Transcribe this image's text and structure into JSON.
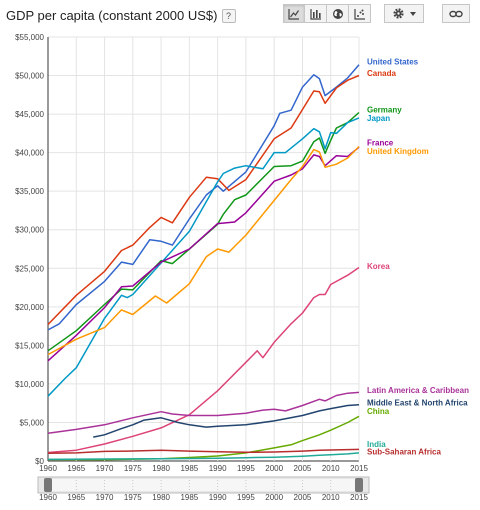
{
  "header": {
    "title": "GDP per capita (constant 2000 US$)",
    "help": "?"
  },
  "toolbar": {
    "buttons": [
      {
        "icon": "line-chart-icon",
        "active": true
      },
      {
        "icon": "bar-chart-icon",
        "active": false
      },
      {
        "icon": "map-globe-icon",
        "active": false
      },
      {
        "icon": "scatter-chart-icon",
        "active": false
      }
    ],
    "settings_icon": "gear-icon",
    "dropdown_icon": "chevron-down-icon",
    "link_icon": "link-icon"
  },
  "chart_data": {
    "type": "line",
    "title": "GDP per capita (constant 2000 US$)",
    "ylim": [
      0,
      55000
    ],
    "xlim": [
      1960,
      2015
    ],
    "yticks": [
      "$0",
      "$5,000",
      "$10,000",
      "$15,000",
      "$20,000",
      "$25,000",
      "$30,000",
      "$35,000",
      "$40,000",
      "$45,000",
      "$50,000",
      "$55,000"
    ],
    "xticks": [
      "1960",
      "1965",
      "1970",
      "1975",
      "1980",
      "1985",
      "1990",
      "1995",
      "2000",
      "2005",
      "2010",
      "2015"
    ],
    "range_slider_ticks": [
      "1960",
      "1965",
      "1970",
      "1975",
      "1980",
      "1985",
      "1990",
      "1995",
      "2000",
      "2005",
      "2010",
      "2015"
    ],
    "grid": true,
    "legend": "right",
    "series": [
      {
        "name": "United States",
        "color": "#3366cc",
        "points": [
          [
            1960,
            17000
          ],
          [
            1962,
            17800
          ],
          [
            1965,
            20300
          ],
          [
            1970,
            23300
          ],
          [
            1973,
            25800
          ],
          [
            1975,
            25500
          ],
          [
            1978,
            28700
          ],
          [
            1980,
            28500
          ],
          [
            1982,
            28000
          ],
          [
            1985,
            31400
          ],
          [
            1988,
            34500
          ],
          [
            1990,
            35700
          ],
          [
            1991,
            35000
          ],
          [
            1995,
            37500
          ],
          [
            2000,
            43500
          ],
          [
            2001,
            45100
          ],
          [
            2003,
            45500
          ],
          [
            2005,
            48500
          ],
          [
            2007,
            50100
          ],
          [
            2008,
            49600
          ],
          [
            2009,
            47400
          ],
          [
            2011,
            48500
          ],
          [
            2013,
            49700
          ],
          [
            2015,
            51400
          ]
        ]
      },
      {
        "name": "Canada",
        "color": "#dc3912",
        "points": [
          [
            1960,
            17700
          ],
          [
            1965,
            21500
          ],
          [
            1970,
            24600
          ],
          [
            1973,
            27300
          ],
          [
            1975,
            28000
          ],
          [
            1978,
            30300
          ],
          [
            1980,
            31600
          ],
          [
            1982,
            30900
          ],
          [
            1985,
            34200
          ],
          [
            1988,
            36800
          ],
          [
            1990,
            36600
          ],
          [
            1992,
            35100
          ],
          [
            1995,
            36500
          ],
          [
            2000,
            41800
          ],
          [
            2003,
            43200
          ],
          [
            2005,
            45600
          ],
          [
            2007,
            48000
          ],
          [
            2008,
            47900
          ],
          [
            2009,
            46400
          ],
          [
            2011,
            48400
          ],
          [
            2013,
            49400
          ],
          [
            2015,
            50000
          ]
        ]
      },
      {
        "name": "Germany",
        "color": "#109618",
        "points": [
          [
            1960,
            14300
          ],
          [
            1965,
            16900
          ],
          [
            1970,
            20300
          ],
          [
            1973,
            22300
          ],
          [
            1975,
            22200
          ],
          [
            1980,
            26000
          ],
          [
            1982,
            25600
          ],
          [
            1985,
            27500
          ],
          [
            1990,
            30700
          ],
          [
            1991,
            32000
          ],
          [
            1993,
            33900
          ],
          [
            1995,
            34500
          ],
          [
            2000,
            38200
          ],
          [
            2003,
            38300
          ],
          [
            2005,
            38900
          ],
          [
            2007,
            41400
          ],
          [
            2008,
            41900
          ],
          [
            2009,
            39900
          ],
          [
            2010,
            41600
          ],
          [
            2011,
            43200
          ],
          [
            2013,
            43900
          ],
          [
            2015,
            45200
          ]
        ]
      },
      {
        "name": "Japan",
        "color": "#0099c6",
        "points": [
          [
            1960,
            8400
          ],
          [
            1963,
            10700
          ],
          [
            1965,
            12100
          ],
          [
            1970,
            18500
          ],
          [
            1973,
            21500
          ],
          [
            1974,
            21200
          ],
          [
            1975,
            21600
          ],
          [
            1980,
            25700
          ],
          [
            1985,
            29800
          ],
          [
            1990,
            36200
          ],
          [
            1991,
            37300
          ],
          [
            1993,
            38000
          ],
          [
            1995,
            38300
          ],
          [
            1998,
            37900
          ],
          [
            2000,
            40000
          ],
          [
            2002,
            40000
          ],
          [
            2005,
            41800
          ],
          [
            2007,
            43100
          ],
          [
            2008,
            42700
          ],
          [
            2009,
            40500
          ],
          [
            2010,
            42600
          ],
          [
            2011,
            42500
          ],
          [
            2013,
            43900
          ],
          [
            2015,
            44500
          ]
        ]
      },
      {
        "name": "France",
        "color": "#990099",
        "points": [
          [
            1960,
            13000
          ],
          [
            1965,
            16300
          ],
          [
            1970,
            19900
          ],
          [
            1973,
            22600
          ],
          [
            1975,
            22700
          ],
          [
            1980,
            25800
          ],
          [
            1985,
            27500
          ],
          [
            1990,
            30800
          ],
          [
            1993,
            31000
          ],
          [
            1995,
            32200
          ],
          [
            2000,
            36300
          ],
          [
            2003,
            37100
          ],
          [
            2005,
            37900
          ],
          [
            2007,
            39700
          ],
          [
            2008,
            39500
          ],
          [
            2009,
            38300
          ],
          [
            2011,
            39600
          ],
          [
            2013,
            39500
          ],
          [
            2015,
            40700
          ]
        ]
      },
      {
        "name": "United Kingdom",
        "color": "#ff9900",
        "points": [
          [
            1960,
            13800
          ],
          [
            1965,
            15800
          ],
          [
            1970,
            17300
          ],
          [
            1973,
            19600
          ],
          [
            1975,
            19000
          ],
          [
            1979,
            21400
          ],
          [
            1981,
            20500
          ],
          [
            1985,
            23000
          ],
          [
            1988,
            26500
          ],
          [
            1990,
            27500
          ],
          [
            1992,
            27100
          ],
          [
            1995,
            29300
          ],
          [
            2000,
            33800
          ],
          [
            2003,
            36500
          ],
          [
            2005,
            38200
          ],
          [
            2007,
            40400
          ],
          [
            2008,
            40100
          ],
          [
            2009,
            38100
          ],
          [
            2011,
            38500
          ],
          [
            2013,
            39300
          ],
          [
            2015,
            40800
          ]
        ]
      },
      {
        "name": "Korea",
        "color": "#dd4477",
        "points": [
          [
            1960,
            1100
          ],
          [
            1965,
            1400
          ],
          [
            1970,
            2200
          ],
          [
            1975,
            3200
          ],
          [
            1980,
            4300
          ],
          [
            1985,
            6000
          ],
          [
            1990,
            9100
          ],
          [
            1995,
            12800
          ],
          [
            1997,
            14300
          ],
          [
            1998,
            13400
          ],
          [
            2000,
            15400
          ],
          [
            2003,
            17800
          ],
          [
            2005,
            19200
          ],
          [
            2007,
            21200
          ],
          [
            2008,
            21600
          ],
          [
            2009,
            21600
          ],
          [
            2010,
            22900
          ],
          [
            2013,
            24100
          ],
          [
            2015,
            25100
          ]
        ]
      },
      {
        "name": "Latin America & Caribbean",
        "color": "#aa3399",
        "points": [
          [
            1960,
            3600
          ],
          [
            1965,
            4100
          ],
          [
            1970,
            4700
          ],
          [
            1975,
            5600
          ],
          [
            1980,
            6400
          ],
          [
            1982,
            6100
          ],
          [
            1985,
            5900
          ],
          [
            1990,
            5900
          ],
          [
            1995,
            6200
          ],
          [
            1998,
            6600
          ],
          [
            2000,
            6700
          ],
          [
            2002,
            6500
          ],
          [
            2005,
            7200
          ],
          [
            2008,
            8000
          ],
          [
            2009,
            7800
          ],
          [
            2011,
            8500
          ],
          [
            2013,
            8800
          ],
          [
            2015,
            8900
          ]
        ]
      },
      {
        "name": "Middle East & North Africa",
        "color": "#22446e",
        "points": [
          [
            1968,
            3100
          ],
          [
            1970,
            3400
          ],
          [
            1973,
            4200
          ],
          [
            1975,
            4700
          ],
          [
            1977,
            5300
          ],
          [
            1980,
            5600
          ],
          [
            1983,
            5000
          ],
          [
            1985,
            4700
          ],
          [
            1988,
            4400
          ],
          [
            1990,
            4500
          ],
          [
            1995,
            4700
          ],
          [
            2000,
            5200
          ],
          [
            2005,
            5900
          ],
          [
            2008,
            6500
          ],
          [
            2010,
            6800
          ],
          [
            2013,
            7200
          ],
          [
            2015,
            7300
          ]
        ]
      },
      {
        "name": "China",
        "color": "#66aa00",
        "points": [
          [
            1960,
            200
          ],
          [
            1970,
            180
          ],
          [
            1980,
            290
          ],
          [
            1985,
            460
          ],
          [
            1990,
            650
          ],
          [
            1995,
            1050
          ],
          [
            2000,
            1700
          ],
          [
            2003,
            2100
          ],
          [
            2005,
            2650
          ],
          [
            2008,
            3400
          ],
          [
            2010,
            4000
          ],
          [
            2013,
            5000
          ],
          [
            2015,
            5800
          ]
        ]
      },
      {
        "name": "India",
        "color": "#22aa99",
        "points": [
          [
            1960,
            210
          ],
          [
            1970,
            260
          ],
          [
            1980,
            280
          ],
          [
            1990,
            360
          ],
          [
            1995,
            430
          ],
          [
            2000,
            490
          ],
          [
            2005,
            620
          ],
          [
            2008,
            740
          ],
          [
            2010,
            820
          ],
          [
            2013,
            920
          ],
          [
            2015,
            1050
          ]
        ]
      },
      {
        "name": "Sub-Saharan Africa",
        "color": "#b82e2e",
        "points": [
          [
            1960,
            1000
          ],
          [
            1965,
            1050
          ],
          [
            1970,
            1250
          ],
          [
            1975,
            1300
          ],
          [
            1980,
            1400
          ],
          [
            1985,
            1280
          ],
          [
            1990,
            1200
          ],
          [
            1995,
            1130
          ],
          [
            2000,
            1170
          ],
          [
            2005,
            1290
          ],
          [
            2008,
            1390
          ],
          [
            2010,
            1430
          ],
          [
            2013,
            1480
          ],
          [
            2015,
            1510
          ]
        ]
      }
    ],
    "labels": [
      {
        "series": "United States",
        "text": "United States",
        "y": 51800
      },
      {
        "series": "Canada",
        "text": "Canada",
        "y": 50300
      },
      {
        "series": "Germany",
        "text": "Germany",
        "y": 45600
      },
      {
        "series": "Japan",
        "text": "Japan",
        "y": 44500
      },
      {
        "series": "France",
        "text": "France",
        "y": 41300
      },
      {
        "series": "United Kingdom",
        "text": "United Kingdom",
        "y": 40200
      },
      {
        "series": "Korea",
        "text": "Korea",
        "y": 25300
      },
      {
        "series": "Latin America & Caribbean",
        "text": "Latin America & Caribbean",
        "y": 9200
      },
      {
        "series": "Middle East & North Africa",
        "text": "Middle East & North Africa",
        "y": 7600
      },
      {
        "series": "China",
        "text": "China",
        "y": 6500
      },
      {
        "series": "India",
        "text": "India",
        "y": 2200
      },
      {
        "series": "Sub-Saharan Africa",
        "text": "Sub-Saharan Africa",
        "y": 1200
      }
    ]
  }
}
